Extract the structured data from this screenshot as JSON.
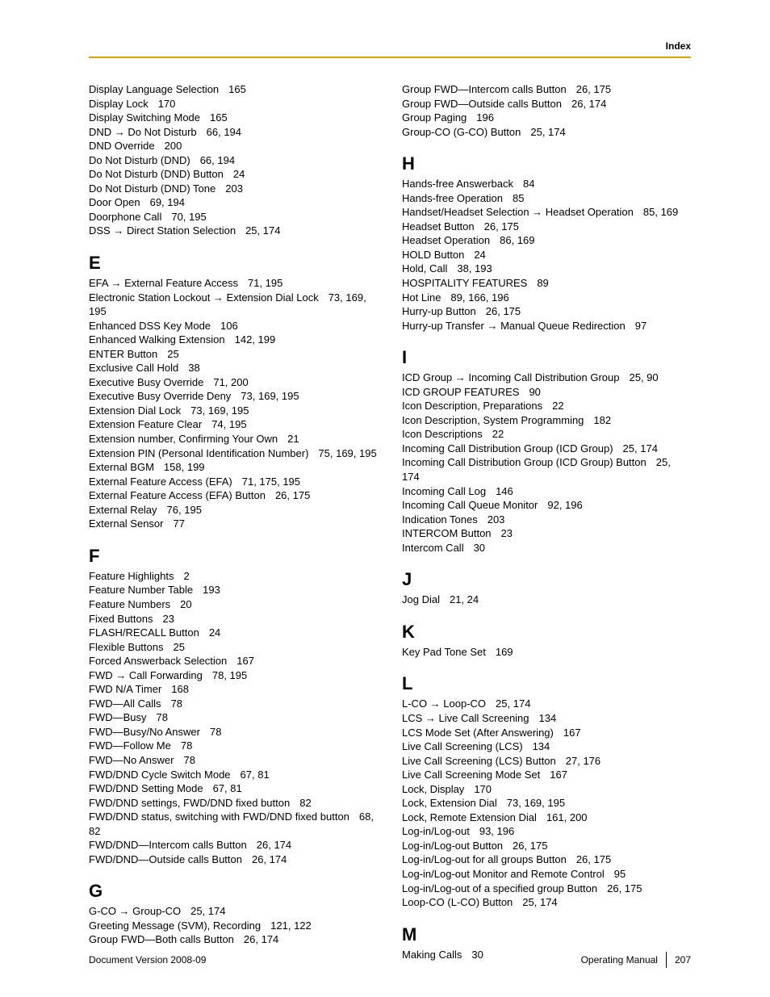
{
  "header": {
    "label": "Index"
  },
  "footer": {
    "left": "Document Version  2008-09",
    "right_label": "Operating Manual",
    "page_number": "207"
  },
  "left_column": {
    "continuation": [
      {
        "term": "Display Language Selection",
        "pages": "165"
      },
      {
        "term": "Display Lock",
        "pages": "170"
      },
      {
        "term": "Display Switching Mode",
        "pages": "165"
      },
      {
        "term": "DND → Do Not Disturb",
        "pages": "66, 194"
      },
      {
        "term": "DND Override",
        "pages": "200"
      },
      {
        "term": "Do Not Disturb (DND)",
        "pages": "66, 194"
      },
      {
        "term": "Do Not Disturb (DND) Button",
        "pages": "24"
      },
      {
        "term": "Do Not Disturb (DND) Tone",
        "pages": "203"
      },
      {
        "term": "Door Open",
        "pages": "69, 194"
      },
      {
        "term": "Doorphone Call",
        "pages": "70, 195"
      },
      {
        "term": "DSS → Direct Station Selection",
        "pages": "25, 174"
      }
    ],
    "sections": [
      {
        "letter": "E",
        "entries": [
          {
            "term": "EFA → External Feature Access",
            "pages": "71, 195"
          },
          {
            "term": "Electronic Station Lockout → Extension Dial Lock",
            "pages": "73, 169, 195"
          },
          {
            "term": "Enhanced DSS Key Mode",
            "pages": "106"
          },
          {
            "term": "Enhanced Walking Extension",
            "pages": "142, 199"
          },
          {
            "term": "ENTER Button",
            "pages": "25"
          },
          {
            "term": "Exclusive Call Hold",
            "pages": "38"
          },
          {
            "term": "Executive Busy Override",
            "pages": "71, 200"
          },
          {
            "term": "Executive Busy Override Deny",
            "pages": "73, 169, 195"
          },
          {
            "term": "Extension Dial Lock",
            "pages": "73, 169, 195"
          },
          {
            "term": "Extension Feature Clear",
            "pages": "74, 195"
          },
          {
            "term": "Extension number, Confirming Your Own",
            "pages": "21"
          },
          {
            "term": "Extension PIN (Personal Identification Number)",
            "pages": "75, 169, 195"
          },
          {
            "term": "External BGM",
            "pages": "158, 199"
          },
          {
            "term": "External Feature Access (EFA)",
            "pages": "71, 175, 195"
          },
          {
            "term": "External Feature Access (EFA) Button",
            "pages": "26, 175"
          },
          {
            "term": "External Relay",
            "pages": "76, 195"
          },
          {
            "term": "External Sensor",
            "pages": "77"
          }
        ]
      },
      {
        "letter": "F",
        "entries": [
          {
            "term": "Feature Highlights",
            "pages": "2"
          },
          {
            "term": "Feature Number Table",
            "pages": "193"
          },
          {
            "term": "Feature Numbers",
            "pages": "20"
          },
          {
            "term": "Fixed Buttons",
            "pages": "23"
          },
          {
            "term": "FLASH/RECALL Button",
            "pages": "24"
          },
          {
            "term": "Flexible Buttons",
            "pages": "25"
          },
          {
            "term": "Forced Answerback Selection",
            "pages": "167"
          },
          {
            "term": "FWD → Call Forwarding",
            "pages": "78, 195"
          },
          {
            "term": "FWD N/A Timer",
            "pages": "168"
          },
          {
            "term": "FWD—All Calls",
            "pages": "78"
          },
          {
            "term": "FWD—Busy",
            "pages": "78"
          },
          {
            "term": "FWD—Busy/No Answer",
            "pages": "78"
          },
          {
            "term": "FWD—Follow Me",
            "pages": "78"
          },
          {
            "term": "FWD—No Answer",
            "pages": "78"
          },
          {
            "term": "FWD/DND Cycle Switch Mode",
            "pages": "67, 81"
          },
          {
            "term": "FWD/DND Setting Mode",
            "pages": "67, 81"
          },
          {
            "term": "FWD/DND settings, FWD/DND fixed button",
            "pages": "82"
          },
          {
            "term": "FWD/DND status, switching with FWD/DND fixed button",
            "pages": "68, 82"
          },
          {
            "term": "FWD/DND—Intercom calls Button",
            "pages": "26, 174"
          },
          {
            "term": "FWD/DND—Outside calls Button",
            "pages": "26, 174"
          }
        ]
      },
      {
        "letter": "G",
        "entries": [
          {
            "term": "G-CO → Group-CO",
            "pages": "25, 174"
          },
          {
            "term": "Greeting Message (SVM), Recording",
            "pages": "121, 122"
          },
          {
            "term": "Group FWD—Both calls Button",
            "pages": "26, 174"
          }
        ]
      }
    ]
  },
  "right_column": {
    "continuation": [
      {
        "term": "Group FWD—Intercom calls Button",
        "pages": "26, 175"
      },
      {
        "term": "Group FWD—Outside calls Button",
        "pages": "26, 174"
      },
      {
        "term": "Group Paging",
        "pages": "196"
      },
      {
        "term": "Group-CO (G-CO) Button",
        "pages": "25, 174"
      }
    ],
    "sections": [
      {
        "letter": "H",
        "entries": [
          {
            "term": "Hands-free Answerback",
            "pages": "84"
          },
          {
            "term": "Hands-free Operation",
            "pages": "85"
          },
          {
            "term": "Handset/Headset Selection → Headset Operation",
            "pages": "85, 169"
          },
          {
            "term": "Headset Button",
            "pages": "26, 175"
          },
          {
            "term": "Headset Operation",
            "pages": "86, 169"
          },
          {
            "term": "HOLD Button",
            "pages": "24"
          },
          {
            "term": "Hold, Call",
            "pages": "38, 193"
          },
          {
            "term": "HOSPITALITY FEATURES",
            "pages": "89"
          },
          {
            "term": "Hot Line",
            "pages": "89, 166, 196"
          },
          {
            "term": "Hurry-up Button",
            "pages": "26, 175"
          },
          {
            "term": "Hurry-up Transfer → Manual Queue Redirection",
            "pages": "97"
          }
        ]
      },
      {
        "letter": "I",
        "entries": [
          {
            "term": "ICD Group → Incoming Call Distribution Group",
            "pages": "25, 90"
          },
          {
            "term": "ICD GROUP FEATURES",
            "pages": "90"
          },
          {
            "term": "Icon Description, Preparations",
            "pages": "22"
          },
          {
            "term": "Icon Description, System Programming",
            "pages": "182"
          },
          {
            "term": "Icon Descriptions",
            "pages": "22"
          },
          {
            "term": "Incoming Call Distribution Group (ICD Group)",
            "pages": "25, 174"
          },
          {
            "term": "Incoming Call Distribution Group (ICD Group) Button",
            "pages": "25, 174"
          },
          {
            "term": "Incoming Call Log",
            "pages": "146"
          },
          {
            "term": "Incoming Call Queue Monitor",
            "pages": "92, 196"
          },
          {
            "term": "Indication Tones",
            "pages": "203"
          },
          {
            "term": "INTERCOM Button",
            "pages": "23"
          },
          {
            "term": "Intercom Call",
            "pages": "30"
          }
        ]
      },
      {
        "letter": "J",
        "entries": [
          {
            "term": "Jog Dial",
            "pages": "21, 24"
          }
        ]
      },
      {
        "letter": "K",
        "entries": [
          {
            "term": "Key Pad Tone Set",
            "pages": "169"
          }
        ]
      },
      {
        "letter": "L",
        "entries": [
          {
            "term": "L-CO → Loop-CO",
            "pages": "25, 174"
          },
          {
            "term": "LCS → Live Call Screening",
            "pages": "134"
          },
          {
            "term": "LCS Mode Set (After Answering)",
            "pages": "167"
          },
          {
            "term": "Live Call Screening (LCS)",
            "pages": "134"
          },
          {
            "term": "Live Call Screening (LCS) Button",
            "pages": "27, 176"
          },
          {
            "term": "Live Call Screening Mode Set",
            "pages": "167"
          },
          {
            "term": "Lock, Display",
            "pages": "170"
          },
          {
            "term": "Lock, Extension Dial",
            "pages": "73, 169, 195"
          },
          {
            "term": "Lock, Remote Extension Dial",
            "pages": "161, 200"
          },
          {
            "term": "Log-in/Log-out",
            "pages": "93, 196"
          },
          {
            "term": "Log-in/Log-out Button",
            "pages": "26, 175"
          },
          {
            "term": "Log-in/Log-out for all groups Button",
            "pages": "26, 175"
          },
          {
            "term": "Log-in/Log-out Monitor and Remote Control",
            "pages": "95"
          },
          {
            "term": "Log-in/Log-out of a specified group Button",
            "pages": "26, 175"
          },
          {
            "term": "Loop-CO (L-CO) Button",
            "pages": "25, 174"
          }
        ]
      },
      {
        "letter": "M",
        "entries": [
          {
            "term": "Making Calls",
            "pages": "30"
          }
        ]
      }
    ]
  }
}
